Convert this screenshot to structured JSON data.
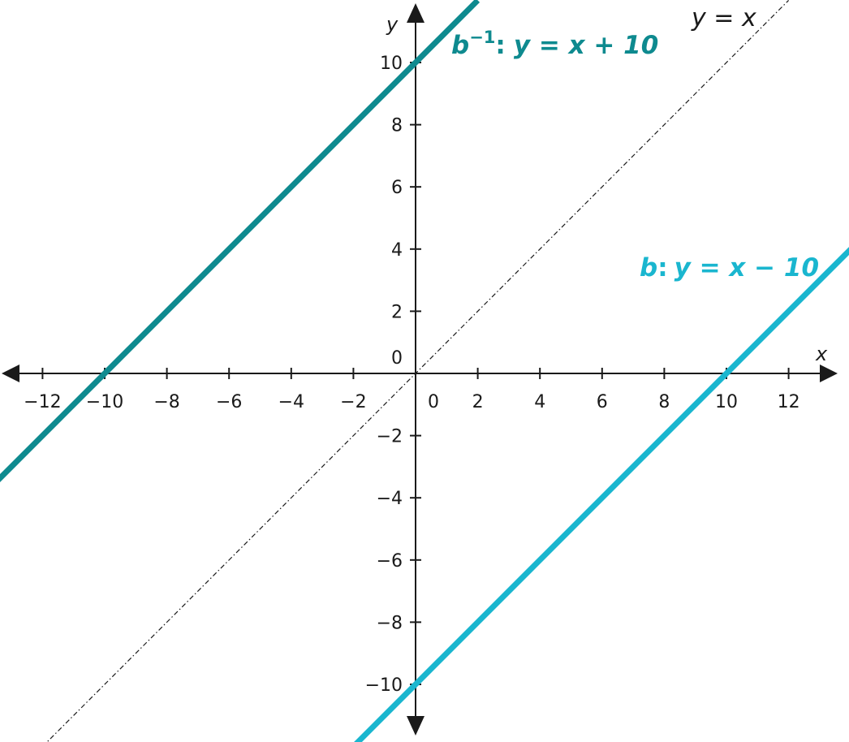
{
  "chart_data": {
    "type": "line",
    "title": "",
    "xlabel": "x",
    "ylabel": "y",
    "xlim": [
      -13,
      13
    ],
    "ylim": [
      -11,
      11
    ],
    "grid": false,
    "x_ticks": [
      -12,
      -10,
      -8,
      -6,
      -4,
      -2,
      0,
      2,
      4,
      6,
      8,
      10,
      12
    ],
    "y_ticks": [
      -10,
      -8,
      -6,
      -4,
      -2,
      0,
      2,
      4,
      6,
      8,
      10
    ],
    "x_tick_labels": [
      "−12",
      "−10",
      "−8",
      "−6",
      "−4",
      "−2",
      "0",
      "2",
      "4",
      "6",
      "8",
      "10",
      "12"
    ],
    "y_tick_labels": [
      "−10",
      "−8",
      "−6",
      "−4",
      "−2",
      "0",
      "2",
      "4",
      "6",
      "8",
      "10"
    ],
    "series": [
      {
        "name": "b",
        "equation": "y = x − 10",
        "x": [
          -2,
          14
        ],
        "y": [
          -12,
          4
        ],
        "color": "#1ab6cf",
        "style": "solid-thick"
      },
      {
        "name": "b⁻¹",
        "equation": "y = x + 10",
        "x": [
          -14,
          2
        ],
        "y": [
          -4,
          12
        ],
        "color": "#0e8a8f",
        "style": "solid-thick"
      },
      {
        "name": "",
        "equation": "y = x",
        "x": [
          -12,
          12
        ],
        "y": [
          -12,
          12
        ],
        "color": "#1a1a1a",
        "style": "dash-dot-thin"
      }
    ],
    "labels": {
      "b_name": "b",
      "b_sep": ":",
      "b_eq": "y = x − 10",
      "binv_name": "b",
      "binv_sup": "−1",
      "binv_sep": ":",
      "binv_eq": "y = x + 10",
      "identity_eq": "y = x"
    }
  }
}
